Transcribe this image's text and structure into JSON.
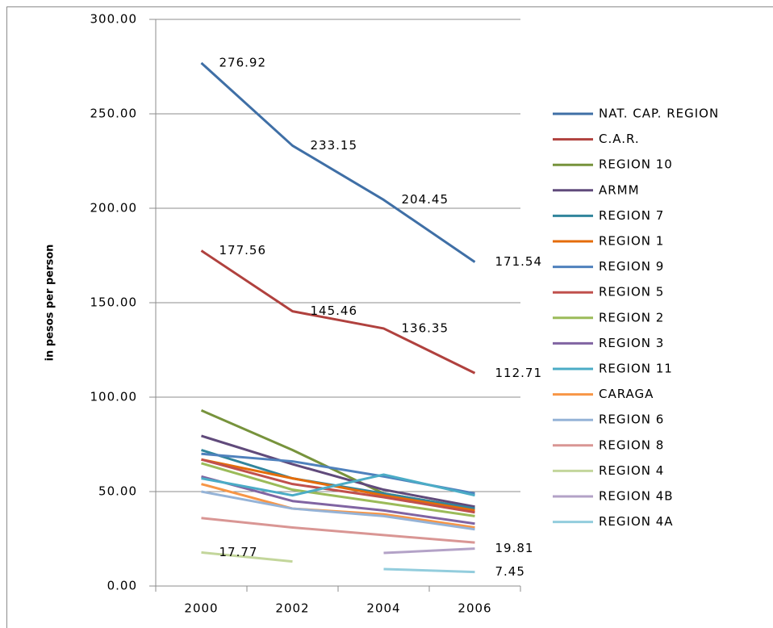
{
  "chart_data": {
    "type": "line",
    "y_label": "in pesos per person",
    "categories": [
      "2000",
      "2002",
      "2004",
      "2006"
    ],
    "ylim": [
      0,
      300
    ],
    "yticks": [
      {
        "value": 0,
        "label": "0.00"
      },
      {
        "value": 50,
        "label": "50.00"
      },
      {
        "value": 100,
        "label": "100.00"
      },
      {
        "value": 150,
        "label": "150.00"
      },
      {
        "value": 200,
        "label": "200.00"
      },
      {
        "value": 250,
        "label": "250.00"
      },
      {
        "value": 300,
        "label": "300.00"
      }
    ],
    "grid": true,
    "legend": "right",
    "series": [
      {
        "name": "NAT. CAP. REGION",
        "color": "#3f6fa6",
        "values": [
          276.92,
          233.15,
          204.45,
          171.54
        ],
        "label_points": [
          0,
          1,
          2,
          3
        ]
      },
      {
        "name": "C.A.R.",
        "color": "#b0413e",
        "values": [
          177.56,
          145.46,
          136.35,
          112.71
        ],
        "label_points": [
          0,
          1,
          2,
          3
        ]
      },
      {
        "name": "REGION 10",
        "color": "#77933c",
        "values": [
          93,
          72,
          49,
          41
        ]
      },
      {
        "name": "ARMM",
        "color": "#604a7b",
        "values": [
          79.5,
          64.5,
          51,
          42
        ]
      },
      {
        "name": "REGION 7",
        "color": "#31859c",
        "values": [
          72,
          57,
          49,
          41
        ]
      },
      {
        "name": "REGION 1",
        "color": "#e46c0a",
        "values": [
          67,
          57,
          48,
          40
        ]
      },
      {
        "name": "REGION 9",
        "color": "#4f81bd",
        "values": [
          70,
          66,
          58,
          49
        ]
      },
      {
        "name": "REGION 5",
        "color": "#c0504d",
        "values": [
          67,
          54,
          47,
          39
        ]
      },
      {
        "name": "REGION 2",
        "color": "#9bbb59",
        "values": [
          65,
          51,
          44,
          37
        ]
      },
      {
        "name": "REGION 3",
        "color": "#8064a2",
        "values": [
          58,
          45,
          40,
          33
        ]
      },
      {
        "name": "REGION 11",
        "color": "#4bacc6",
        "values": [
          57,
          48,
          59,
          48
        ]
      },
      {
        "name": "CARAGA",
        "color": "#f79646",
        "values": [
          54,
          41,
          38,
          31
        ]
      },
      {
        "name": "REGION 6",
        "color": "#95b3d7",
        "values": [
          50,
          41,
          37,
          30
        ]
      },
      {
        "name": "REGION 8",
        "color": "#d99694",
        "values": [
          36,
          31,
          27,
          23
        ]
      },
      {
        "name": "REGION 4",
        "color": "#c3d69b",
        "values": [
          17.77,
          13,
          null,
          null
        ],
        "label_points": [
          0
        ]
      },
      {
        "name": "REGION 4B",
        "color": "#b3a2c7",
        "values": [
          null,
          null,
          17.5,
          19.81
        ],
        "label_points": [
          3
        ]
      },
      {
        "name": "REGION 4A",
        "color": "#93cddd",
        "values": [
          null,
          null,
          9,
          7.45
        ],
        "label_points": [
          3
        ]
      }
    ]
  }
}
